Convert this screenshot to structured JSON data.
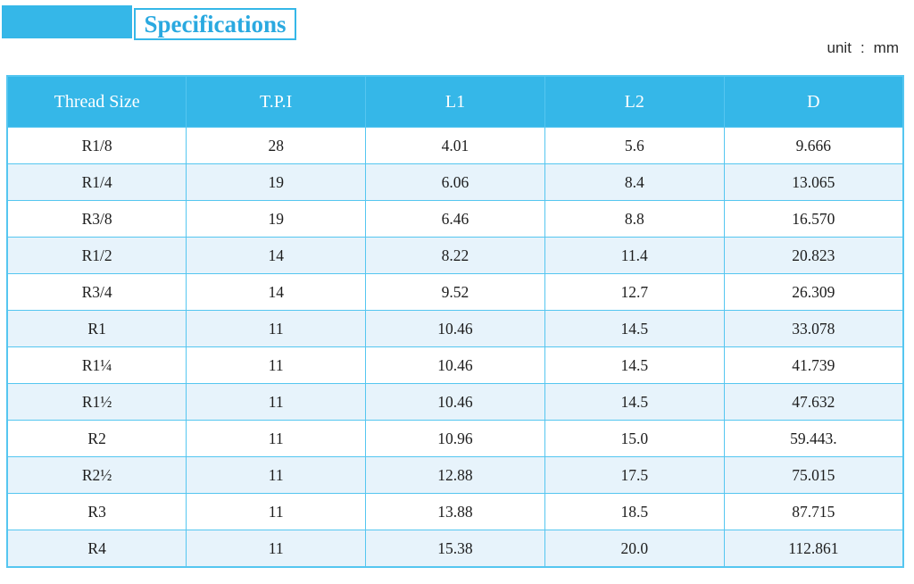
{
  "title": "Specifications",
  "unit": {
    "label": "unit",
    "separator": ":",
    "value": "mm"
  },
  "colors": {
    "accent_cyan": "#35b7e8",
    "table_border": "#55c6f0",
    "row_alternate": "#e7f3fb",
    "header_text": "#ffffff",
    "cell_text": "#1d1d1d",
    "title_text": "#2aa9e0"
  },
  "table": {
    "columns": [
      "Thread Size",
      "T.P.I",
      "L1",
      "L2",
      "D"
    ],
    "rows": [
      [
        "R1/8",
        "28",
        "4.01",
        "5.6",
        "9.666"
      ],
      [
        "R1/4",
        "19",
        "6.06",
        "8.4",
        "13.065"
      ],
      [
        "R3/8",
        "19",
        "6.46",
        "8.8",
        "16.570"
      ],
      [
        "R1/2",
        "14",
        "8.22",
        "11.4",
        "20.823"
      ],
      [
        "R3/4",
        "14",
        "9.52",
        "12.7",
        "26.309"
      ],
      [
        "R1",
        "11",
        "10.46",
        "14.5",
        "33.078"
      ],
      [
        "R1¼",
        "11",
        "10.46",
        "14.5",
        "41.739"
      ],
      [
        "R1½",
        "11",
        "10.46",
        "14.5",
        "47.632"
      ],
      [
        "R2",
        "11",
        "10.96",
        "15.0",
        "59.443."
      ],
      [
        "R2½",
        "11",
        "12.88",
        "17.5",
        "75.015"
      ],
      [
        "R3",
        "11",
        "13.88",
        "18.5",
        "87.715"
      ],
      [
        "R4",
        "11",
        "15.38",
        "20.0",
        "112.861"
      ]
    ]
  }
}
